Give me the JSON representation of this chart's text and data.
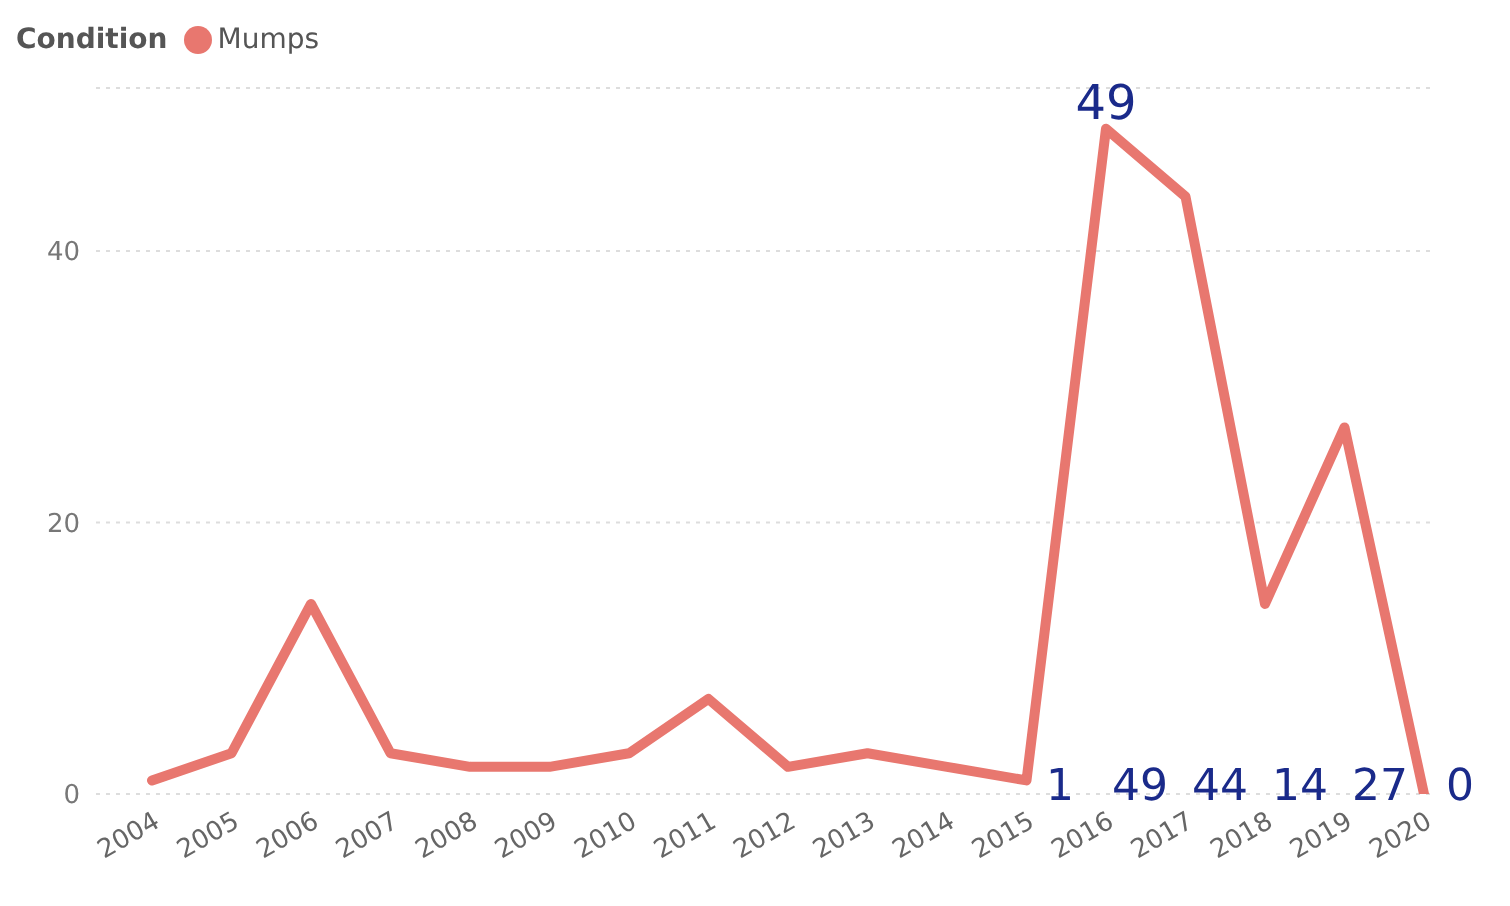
{
  "chart_data": {
    "type": "line",
    "legend_title": "Condition",
    "legend": "top left",
    "grid": "y",
    "marker": "none",
    "categories": [
      "2004",
      "2005",
      "2006",
      "2007",
      "2008",
      "2009",
      "2010",
      "2011",
      "2012",
      "2013",
      "2014",
      "2015",
      "2016",
      "2017",
      "2018",
      "2019",
      "2020"
    ],
    "series": [
      {
        "name": "Mumps",
        "color": "#e8776f",
        "values": [
          1,
          3,
          14,
          3,
          2,
          2,
          3,
          7,
          2,
          3,
          2,
          1,
          49,
          44,
          14,
          27,
          0
        ]
      }
    ],
    "ylim": [
      0,
      52
    ],
    "yticks": [
      0,
      20,
      40
    ],
    "annotations": [
      {
        "text": "49",
        "x": "2016",
        "y": 49
      },
      "1",
      "49",
      "44",
      "14",
      "27",
      "0"
    ]
  }
}
